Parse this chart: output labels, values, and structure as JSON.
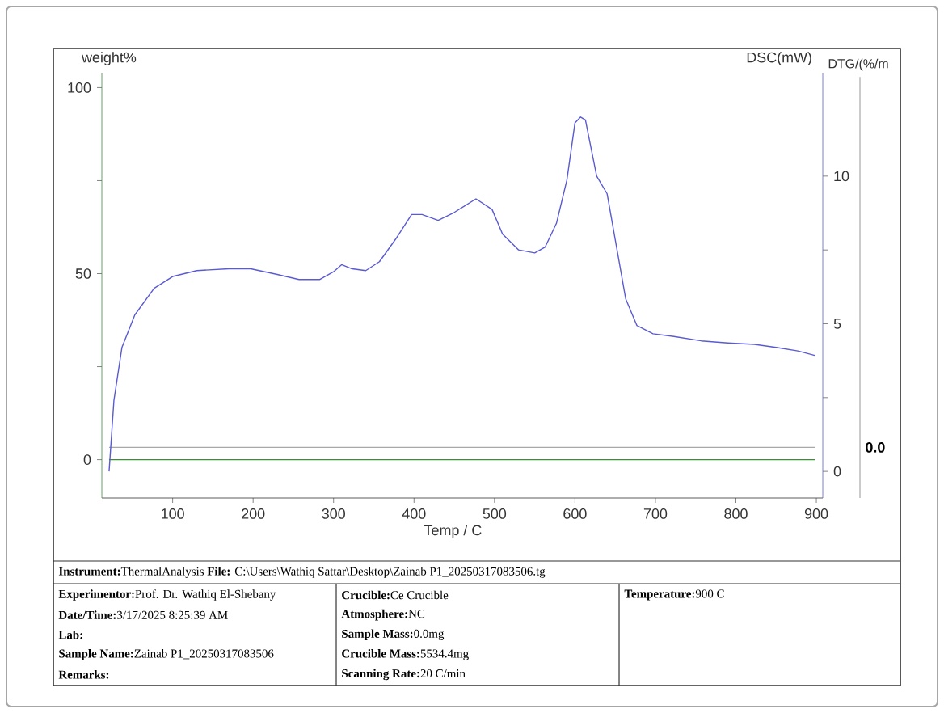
{
  "chart_data": {
    "type": "line",
    "xlabel": "Temp / C",
    "ylabel": "weight%",
    "y2label": "DSC(mW)",
    "xlim": [
      12,
      908
    ],
    "xticks": [
      100,
      200,
      300,
      400,
      500,
      600,
      700,
      800,
      900
    ],
    "ylim": [
      -10.3,
      104
    ],
    "yticks": [
      0,
      {
        "value": 25,
        "label": null
      },
      50,
      {
        "value": 75,
        "label": null
      },
      100
    ],
    "y2lim": [
      -0.9,
      13.5
    ],
    "y2ticks": [
      0,
      {
        "value": 2.5,
        "label": null
      },
      5,
      {
        "value": 7.5,
        "label": null
      },
      10
    ],
    "ref_lines": [
      {
        "axis": "y",
        "value": 3.3,
        "color": "#a8a8a8"
      }
    ],
    "series": [
      {
        "color": "#3c8c3c",
        "x": [
          21,
          898
        ],
        "values": [
          0,
          0
        ]
      },
      {
        "color": "#5a5ad2",
        "axis": "y2",
        "x": [
          21,
          27,
          37,
          53,
          77,
          100,
          130,
          170,
          197,
          230,
          257,
          283,
          300,
          310,
          323,
          340,
          357,
          377,
          397,
          410,
          430,
          450,
          477,
          497,
          510,
          530,
          550,
          563,
          577,
          590,
          600,
          607,
          613,
          627,
          640,
          650,
          663,
          677,
          697,
          723,
          757,
          790,
          823,
          850,
          877,
          898
        ],
        "values": [
          0,
          2.4,
          4.2,
          5.3,
          6.2,
          6.6,
          6.8,
          6.86,
          6.86,
          6.67,
          6.5,
          6.5,
          6.76,
          7.0,
          6.86,
          6.8,
          7.1,
          7.86,
          8.7,
          8.7,
          8.5,
          8.77,
          9.23,
          8.87,
          8.04,
          7.5,
          7.4,
          7.6,
          8.4,
          9.87,
          11.8,
          12.0,
          11.9,
          10.0,
          9.4,
          7.86,
          5.85,
          4.94,
          4.66,
          4.57,
          4.42,
          4.35,
          4.3,
          4.2,
          4.08,
          3.93
        ]
      }
    ],
    "annotations": [
      "DTG/(%/m",
      {
        "text": "0.0",
        "x": 908,
        "y": 3.3
      },
      "**Instrument:**ThermalAnalysis  **File:**  C:\\Users\\Wathiq Sattar\\Desktop\\Zainab P1_20250317083506.tg",
      "**Experimentor:**Prof. Dr. Wathiq El-Shebany",
      "**Date/Time:**3/17/2025 8:25:39 AM",
      "**Lab:**",
      "**Sample Name:**Zainab P1_20250317083506",
      "**Remarks:**",
      "**Crucible:**Ce Crucible",
      "**Atmosphere:**NC",
      "**Sample Mass:**0.0mg",
      "**Crucible Mass:**5534.4mg",
      "**Scanning Rate:**20 C/min",
      "**Temperature:**900 C"
    ]
  }
}
